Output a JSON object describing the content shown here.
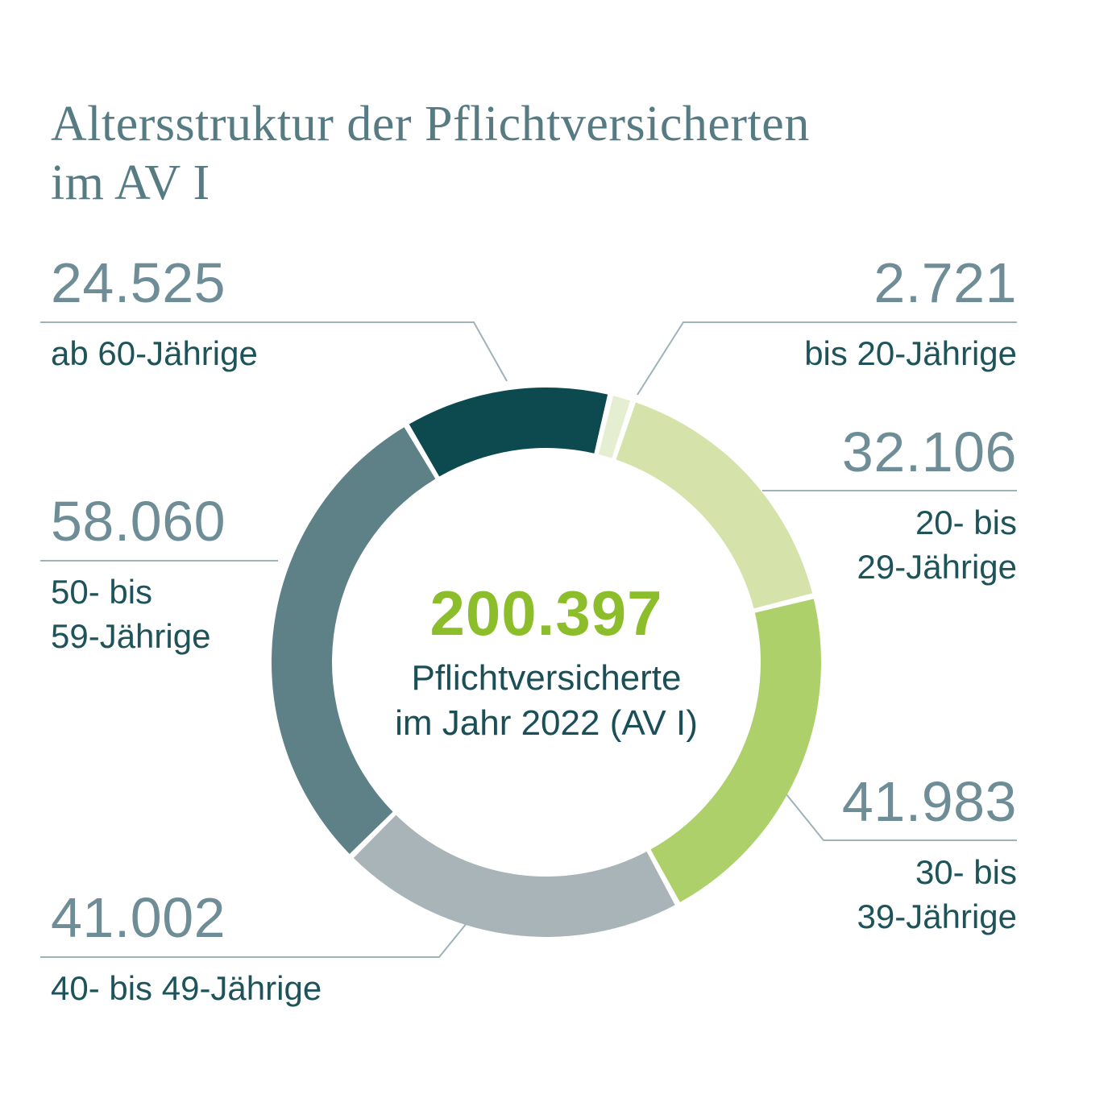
{
  "title": {
    "line1": "Altersstruktur der Pflichtversicherten",
    "line2": "im AV I"
  },
  "center": {
    "total": "200.397",
    "total_color": "#8cbd2a",
    "caption_line1": "Pflichtversicherte",
    "caption_line2": "im Jahr 2022 (AV I)"
  },
  "callouts": [
    {
      "id": "ab-60",
      "number": "24.525",
      "lines": [
        "ab 60-Jährige",
        ""
      ]
    },
    {
      "id": "bis-20",
      "number": "2.721",
      "lines": [
        "bis 20-Jährige",
        ""
      ]
    },
    {
      "id": "20-bis-29",
      "number": "32.106",
      "lines": [
        "20- bis",
        "29-Jährige"
      ]
    },
    {
      "id": "30-bis-39",
      "number": "41.983",
      "lines": [
        "30- bis",
        "39-Jährige"
      ]
    },
    {
      "id": "40-bis-49",
      "number": "41.002",
      "lines": [
        "40- bis 49-Jährige",
        ""
      ]
    },
    {
      "id": "50-bis-59",
      "number": "58.060",
      "lines": [
        "50- bis",
        "59-Jährige"
      ]
    }
  ],
  "chart_data": {
    "type": "pie",
    "donut": true,
    "title": "Altersstruktur der Pflichtversicherten im AV I",
    "categories": [
      "bis 20-Jährige",
      "20- bis 29-Jährige",
      "30- bis 39-Jährige",
      "40- bis 49-Jährige",
      "50- bis 59-Jährige",
      "ab 60-Jährige"
    ],
    "values": [
      2721,
      32106,
      41983,
      41002,
      58060,
      24525
    ],
    "values_formatted": [
      "2.721",
      "32.106",
      "41.983",
      "41.002",
      "58.060",
      "24.525"
    ],
    "colors": [
      "#e6eed2",
      "#d5e3ab",
      "#aed06b",
      "#a9b4b8",
      "#5d8187",
      "#0d4a50"
    ],
    "total": 200397,
    "total_formatted": "200.397",
    "center_label": "Pflichtversicherte im Jahr 2022 (AV I)",
    "start_angle_deg": 13.5,
    "legend_position": "callouts",
    "leader_line_color": "#9db3b8"
  }
}
